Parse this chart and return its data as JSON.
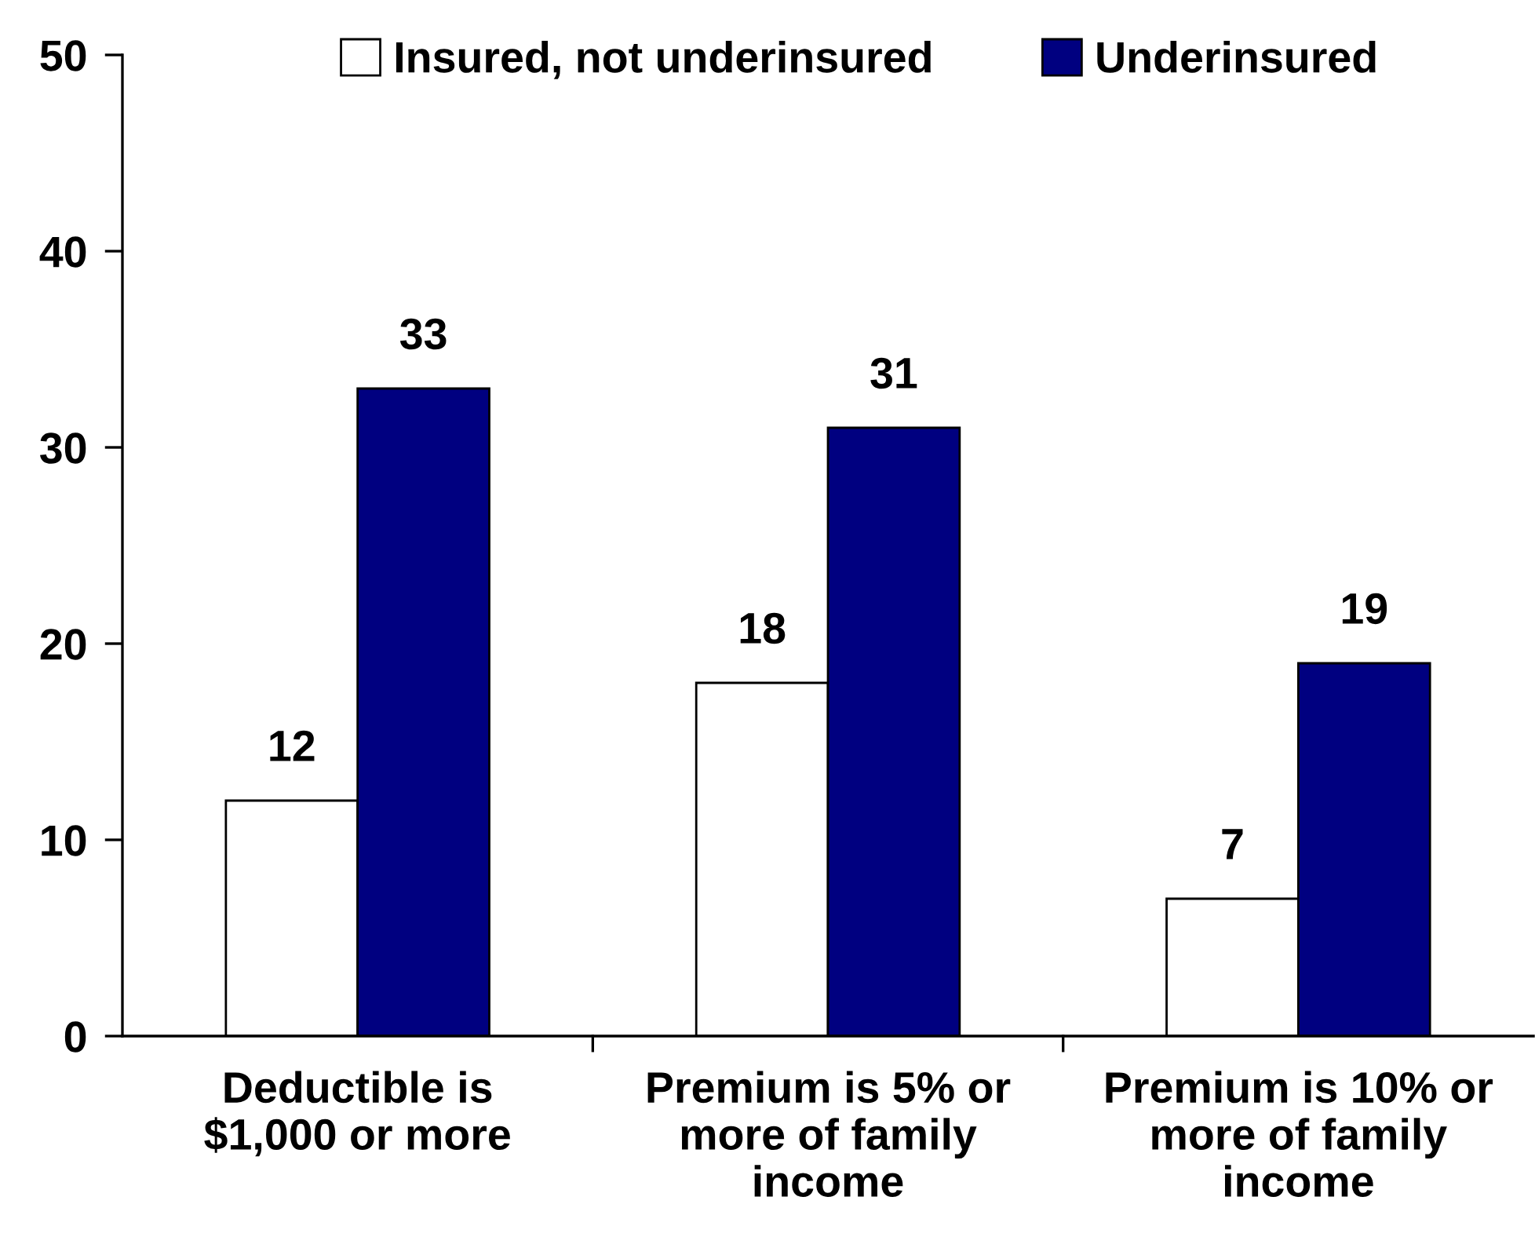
{
  "chart_data": {
    "type": "bar",
    "categories": [
      "Deductible is\n$1,000 or more",
      "Premium is 5% or\nmore of family\nincome",
      "Premium is 10% or\nmore of family\nincome"
    ],
    "series": [
      {
        "name": "Insured, not underinsured",
        "color": "#ffffff",
        "values": [
          12,
          18,
          7
        ]
      },
      {
        "name": "Underinsured",
        "color": "#000080",
        "values": [
          33,
          31,
          19
        ]
      }
    ],
    "ylim": [
      0,
      50
    ],
    "yticks": [
      0,
      10,
      20,
      30,
      40,
      50
    ],
    "data_labels": true,
    "legend": "top",
    "grid": false
  }
}
